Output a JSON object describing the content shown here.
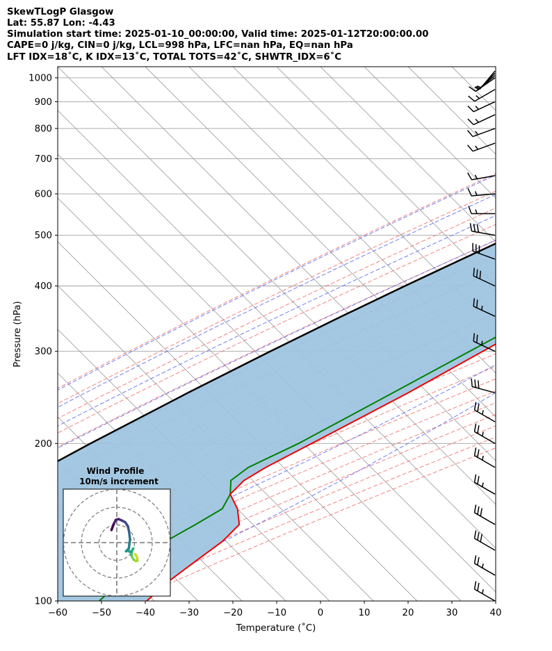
{
  "header": {
    "line1": "SkewTLogP Glasgow",
    "line2": "Lat: 55.87   Lon: -4.43",
    "line3": "Simulation start time: 2025-01-10_00:00:00, Valid time: 2025-01-12T20:00:00.00",
    "line4": "CAPE=0 j/kg, CIN=0 j/kg, LCL=998 hPa, LFC=nan hPa, EQ=nan hPa",
    "line5": "LFT IDX=18˚C, K IDX=13˚C, TOTAL TOTS=42˚C, SHWTR_IDX=6˚C"
  },
  "hodograph": {
    "title": "Wind Profile",
    "subtitle": "10m/s increment"
  },
  "colors": {
    "temperature": "#ee0000",
    "dewpoint": "#008000",
    "parcel": "#000000",
    "fill": "#9fc5e0",
    "isotherm": "#a0a0a0",
    "dry_adiabat": "#f26b6b",
    "moist_adiabat": "#4a5cf0",
    "mixing_ratio": "#7f3fbf"
  },
  "chart_data": {
    "type": "line",
    "subtype": "skewt-logp",
    "xlabel": "Temperature (˚C)",
    "ylabel": "Pressure (hPa)",
    "xlim": [
      -60,
      40
    ],
    "ylim": [
      1050,
      100
    ],
    "y_scale": "log",
    "skew": "isotherms at 45 degrees",
    "grid": true,
    "x_ticks": [
      "−60",
      "−50",
      "−40",
      "−30",
      "−20",
      "−10",
      "0",
      "10",
      "20",
      "30",
      "40"
    ],
    "y_ticks": [
      "100",
      "200",
      "300",
      "400",
      "500",
      "600",
      "700",
      "800",
      "900",
      "1000"
    ],
    "series": [
      {
        "role": "temperature",
        "pressure": [
          1030,
          1015,
          1000,
          950,
          925,
          900,
          875,
          850,
          800,
          750,
          700,
          650,
          600,
          550,
          500,
          450,
          400,
          350,
          300,
          250,
          200,
          180,
          170,
          160,
          150,
          140,
          130,
          120,
          110,
          100
        ],
        "temp": [
          7.6,
          8,
          9.5,
          10.8,
          11.7,
          12.5,
          11.8,
          11,
          9,
          7.6,
          6,
          3.5,
          0.5,
          -2.8,
          -3.8,
          -5.5,
          -9,
          -13.5,
          -20,
          -27.5,
          -38,
          -43,
          -45,
          -45,
          -40,
          -36,
          -36,
          -37.5,
          -39,
          -39.7
        ]
      },
      {
        "role": "dewpoint",
        "pressure": [
          1030,
          1015,
          1000,
          950,
          900,
          850,
          800,
          750,
          700,
          650,
          600,
          550,
          500,
          450,
          400,
          350,
          300,
          250,
          200,
          180,
          170,
          160,
          150,
          140,
          130,
          120,
          110,
          100
        ],
        "temp": [
          7.5,
          7.6,
          8,
          9.6,
          10.5,
          9.5,
          7.3,
          4,
          -1.2,
          -13.3,
          -22,
          -9.5,
          -6.5,
          -7.3,
          -11,
          -16.2,
          -23,
          -31,
          -41,
          -47,
          -48,
          -45,
          -43.5,
          -46,
          -49,
          -50,
          -50,
          -50.5
        ]
      },
      {
        "role": "parcel",
        "pressure": [
          1030,
          1000,
          950,
          900,
          850,
          800,
          750,
          700,
          650,
          600,
          550,
          500,
          450,
          400,
          350,
          300,
          250,
          200,
          170,
          150,
          130,
          115,
          100
        ],
        "temp": [
          7.6,
          5.2,
          1.2,
          -2.7,
          -6.3,
          -10,
          -14.3,
          -18.5,
          -23.3,
          -28.3,
          -33.7,
          -39.5,
          -45.8,
          -52.7,
          -60.2,
          -68.5,
          -77.8,
          -88.5,
          -95.7,
          -101,
          -106.9,
          -112,
          -117.5
        ]
      }
    ],
    "wind_barbs": [
      {
        "p": 1030,
        "speed": 5,
        "dir": 220
      },
      {
        "p": 1020,
        "speed": 5,
        "dir": 225
      },
      {
        "p": 1010,
        "speed": 5,
        "dir": 230
      },
      {
        "p": 1000,
        "speed": 10,
        "dir": 235
      },
      {
        "p": 950,
        "speed": 15,
        "dir": 240
      },
      {
        "p": 900,
        "speed": 15,
        "dir": 245
      },
      {
        "p": 850,
        "speed": 15,
        "dir": 245
      },
      {
        "p": 800,
        "speed": 15,
        "dir": 250
      },
      {
        "p": 750,
        "speed": 15,
        "dir": 250
      },
      {
        "p": 650,
        "speed": 15,
        "dir": 260
      },
      {
        "p": 600,
        "speed": 15,
        "dir": 265
      },
      {
        "p": 550,
        "speed": 15,
        "dir": 270
      },
      {
        "p": 500,
        "speed": 30,
        "dir": 280
      },
      {
        "p": 450,
        "speed": 30,
        "dir": 290
      },
      {
        "p": 400,
        "speed": 30,
        "dir": 295
      },
      {
        "p": 350,
        "speed": 25,
        "dir": 295
      },
      {
        "p": 300,
        "speed": 25,
        "dir": 295
      },
      {
        "p": 250,
        "speed": 30,
        "dir": 285
      },
      {
        "p": 220,
        "speed": 25,
        "dir": 300
      },
      {
        "p": 200,
        "speed": 25,
        "dir": 300
      },
      {
        "p": 180,
        "speed": 25,
        "dir": 300
      },
      {
        "p": 160,
        "speed": 25,
        "dir": 300
      },
      {
        "p": 140,
        "speed": 30,
        "dir": 300
      },
      {
        "p": 125,
        "speed": 30,
        "dir": 300
      },
      {
        "p": 112,
        "speed": 25,
        "dir": 300
      },
      {
        "p": 100,
        "speed": 25,
        "dir": 300
      }
    ],
    "hodograph_data": {
      "ring_step": 10,
      "u": [
        10.5,
        11.4,
        11.7,
        10.9,
        9.4,
        8.2,
        8.5,
        9.3,
        7.8,
        6.1,
        5.2,
        6.8,
        7.1,
        7.5,
        7.2,
        7.0,
        6.3,
        4.8,
        2.8,
        1.0,
        -0.6,
        -1.8,
        -3.0
      ],
      "v": [
        -6.5,
        -8.3,
        -10.1,
        -10.5,
        -9.6,
        -7.2,
        -5.2,
        -3.3,
        -5.4,
        -4.5,
        -4.9,
        -3.3,
        -0.8,
        1.7,
        3.9,
        5.8,
        9.1,
        11.5,
        12.5,
        13.3,
        12.8,
        10.3,
        7.1
      ]
    }
  }
}
